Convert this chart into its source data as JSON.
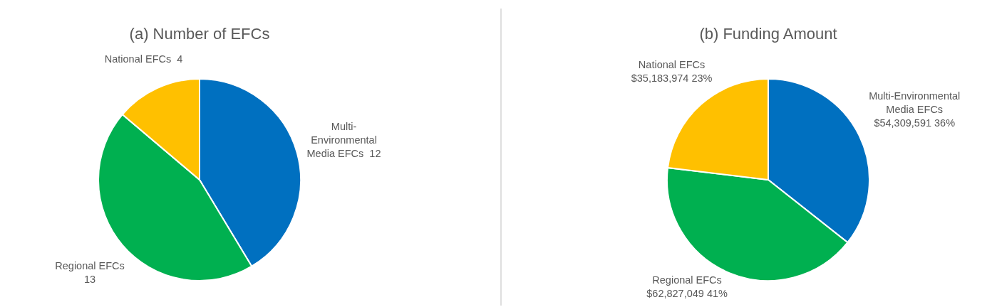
{
  "chart_data": [
    {
      "type": "pie",
      "title": "(a) Number of EFCs",
      "categories": [
        "Multi-Environmental Media EFCs",
        "Regional EFCs",
        "National EFCs"
      ],
      "values": [
        12,
        13,
        4
      ],
      "colors": [
        "#0070c0",
        "#00b050",
        "#ffc000"
      ],
      "data_labels": true
    },
    {
      "type": "pie",
      "title": "(b) Funding Amount",
      "categories": [
        "Multi-Environmental Media EFCs",
        "Regional EFCs",
        "National EFCs"
      ],
      "values": [
        54309591,
        62827049,
        35183974
      ],
      "colors": [
        "#0070c0",
        "#00b050",
        "#ffc000"
      ],
      "value_labels": [
        "$54,309,591 36%",
        "$62,827,049 41%",
        "$35,183,974 23%"
      ]
    }
  ]
}
